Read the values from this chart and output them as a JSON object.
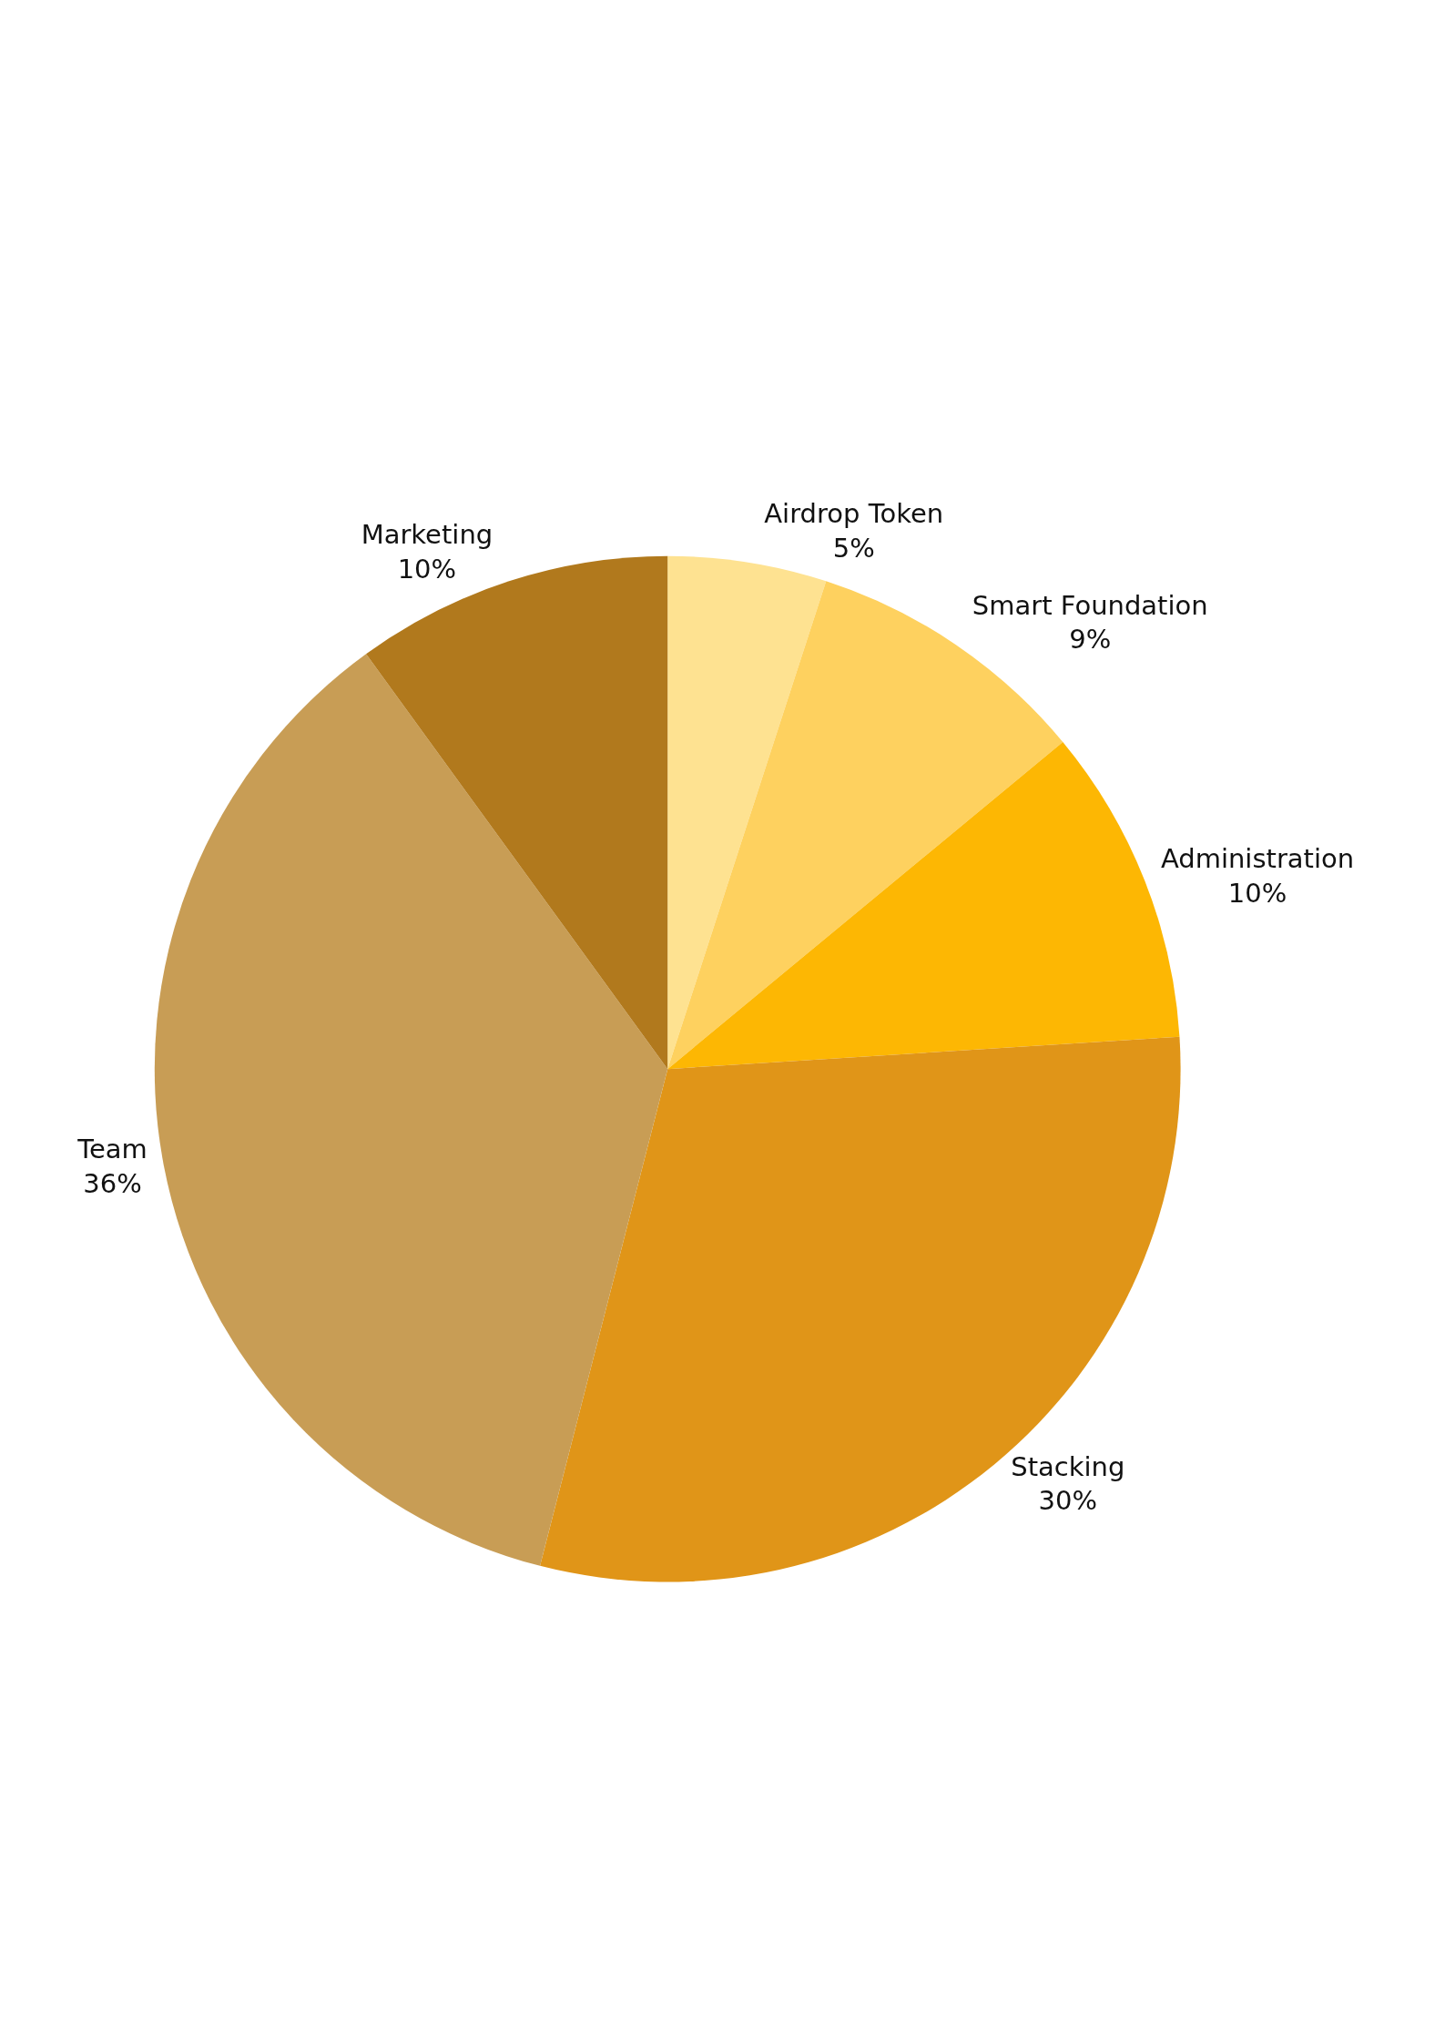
{
  "chart_data": {
    "type": "pie",
    "categories": [
      "Airdrop Token",
      "Smart Foundation",
      "Administration",
      "Stacking",
      "Team",
      "Marketing"
    ],
    "values": [
      5,
      9,
      10,
      30,
      36,
      10
    ],
    "value_labels": [
      "5%",
      "9%",
      "10%",
      "30%",
      "36%",
      "10%"
    ],
    "colors": [
      "#fee291",
      "#fed15f",
      "#fdb703",
      "#e09518",
      "#c89d55",
      "#b1791d"
    ],
    "legend": false
  }
}
